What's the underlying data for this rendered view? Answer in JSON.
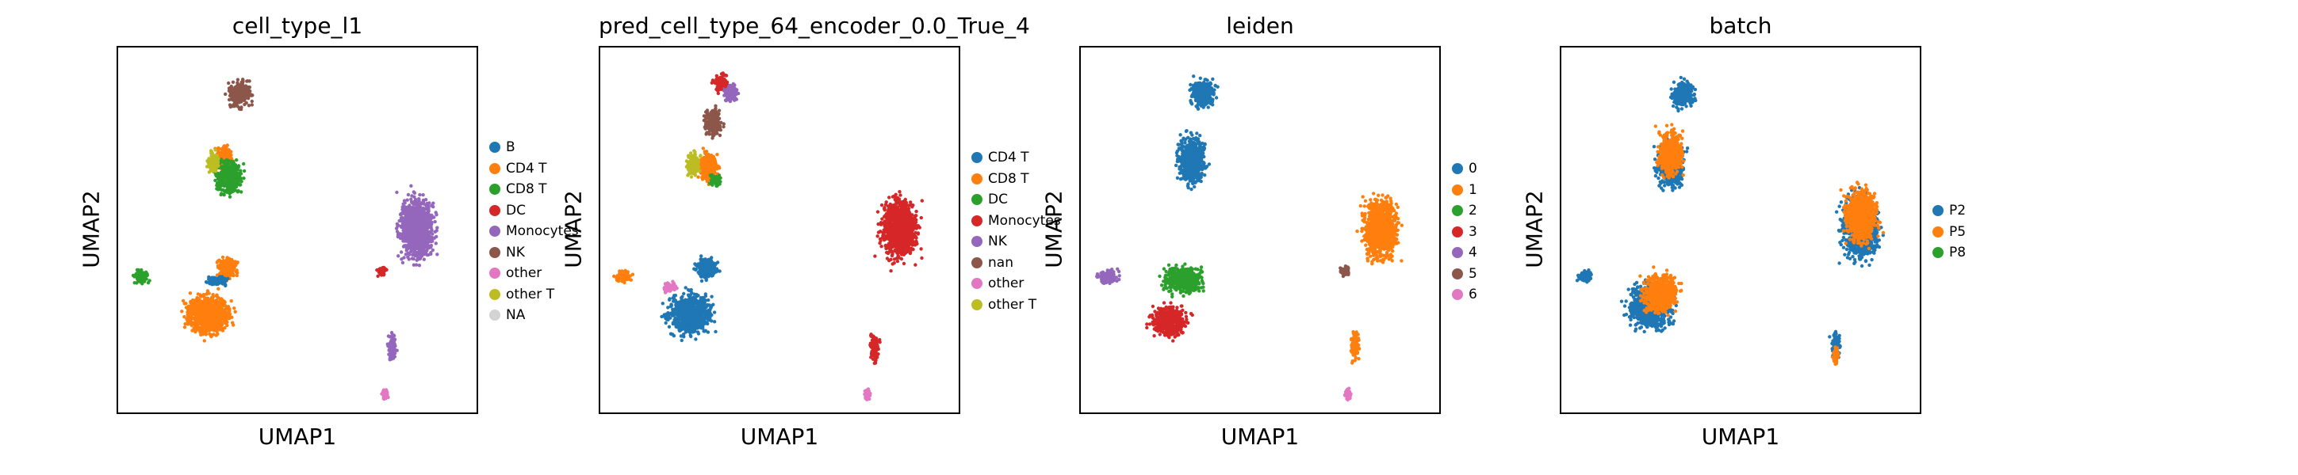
{
  "chart_data": [
    {
      "type": "scatter",
      "title": "cell_type_l1",
      "xlabel": "UMAP1",
      "ylabel": "UMAP2",
      "legend": "right",
      "categories": [
        "B",
        "CD4 T",
        "CD8 T",
        "DC",
        "Monocytes",
        "NK",
        "other",
        "other T",
        "NA"
      ],
      "colors": [
        "#1f77b4",
        "#ff7f0e",
        "#2ca02c",
        "#d62728",
        "#9467bd",
        "#8c564b",
        "#e377c2",
        "#bcbd22",
        "#d3d3d3"
      ],
      "clusters": [
        {
          "name": "CD4 T main",
          "color": 1,
          "x": -5.5,
          "y": -5.5,
          "rx": 1.9,
          "ry": 2.3
        },
        {
          "name": "CD4 T upper",
          "color": 1,
          "x": -4.4,
          "y": -2.2,
          "rx": 0.9,
          "ry": 1.2
        },
        {
          "name": "CD4 T stalk",
          "color": 1,
          "x": -4.6,
          "y": 5.7,
          "rx": 0.8,
          "ry": 1.2
        },
        {
          "name": "B",
          "color": 0,
          "x": -5.0,
          "y": -3.1,
          "rx": 1.0,
          "ry": 0.5
        },
        {
          "name": "CD8 T left",
          "color": 2,
          "x": -9.2,
          "y": -2.8,
          "rx": 0.7,
          "ry": 0.7
        },
        {
          "name": "CD8 T stalk",
          "color": 2,
          "x": -4.3,
          "y": 4.3,
          "rx": 1.2,
          "ry": 2.0
        },
        {
          "name": "other T",
          "color": 7,
          "x": -5.2,
          "y": 5.3,
          "rx": 0.5,
          "ry": 1.2
        },
        {
          "name": "NK",
          "color": 5,
          "x": -3.7,
          "y": 10.2,
          "rx": 1.0,
          "ry": 1.5
        },
        {
          "name": "Monocytes",
          "color": 4,
          "x": 6.2,
          "y": 0.6,
          "rx": 1.6,
          "ry": 3.5
        },
        {
          "name": "Monocytes tail",
          "color": 4,
          "x": 4.8,
          "y": -7.8,
          "rx": 0.4,
          "ry": 1.6
        },
        {
          "name": "DC",
          "color": 3,
          "x": 4.2,
          "y": -2.4,
          "rx": 0.4,
          "ry": 0.5
        },
        {
          "name": "other",
          "color": 6,
          "x": 4.4,
          "y": -11.2,
          "rx": 0.25,
          "ry": 0.6
        }
      ]
    },
    {
      "type": "scatter",
      "title": "pred_cell_type_64_encoder_0.0_True_4",
      "xlabel": "UMAP1",
      "ylabel": "UMAP2",
      "legend": "right",
      "categories": [
        "CD4 T",
        "CD8 T",
        "DC",
        "Monocytes",
        "NK",
        "nan",
        "other",
        "other T"
      ],
      "colors": [
        "#1f77b4",
        "#ff7f0e",
        "#2ca02c",
        "#d62728",
        "#9467bd",
        "#8c564b",
        "#e377c2",
        "#bcbd22"
      ],
      "clusters": [
        {
          "name": "CD4 T main",
          "color": 0,
          "x": -5.5,
          "y": -5.5,
          "rx": 1.9,
          "ry": 2.3
        },
        {
          "name": "CD4 T upper",
          "color": 0,
          "x": -4.6,
          "y": -2.2,
          "rx": 1.0,
          "ry": 1.3
        },
        {
          "name": "CD8 T left",
          "color": 1,
          "x": -9.2,
          "y": -2.8,
          "rx": 0.7,
          "ry": 0.7
        },
        {
          "name": "CD8 T stalk",
          "color": 1,
          "x": -4.5,
          "y": 5.0,
          "rx": 0.9,
          "ry": 1.6
        },
        {
          "name": "other",
          "color": 6,
          "x": -6.6,
          "y": -3.6,
          "rx": 0.6,
          "ry": 0.6
        },
        {
          "name": "other T",
          "color": 7,
          "x": -5.3,
          "y": 5.2,
          "rx": 0.6,
          "ry": 1.3
        },
        {
          "name": "nan",
          "color": 5,
          "x": -4.2,
          "y": 8.2,
          "rx": 0.8,
          "ry": 1.6
        },
        {
          "name": "DC",
          "color": 2,
          "x": -4.1,
          "y": 4.0,
          "rx": 0.6,
          "ry": 0.7
        },
        {
          "name": "NK",
          "color": 4,
          "x": -3.2,
          "y": 10.3,
          "rx": 0.7,
          "ry": 1.0
        },
        {
          "name": "Monocytes top",
          "color": 3,
          "x": -3.8,
          "y": 11.0,
          "rx": 0.6,
          "ry": 1.0
        },
        {
          "name": "Monocytes",
          "color": 3,
          "x": 6.2,
          "y": 0.6,
          "rx": 1.6,
          "ry": 3.5
        },
        {
          "name": "Monocytes tail",
          "color": 3,
          "x": 4.8,
          "y": -7.8,
          "rx": 0.4,
          "ry": 1.6
        },
        {
          "name": "other tail",
          "color": 6,
          "x": 4.4,
          "y": -11.2,
          "rx": 0.25,
          "ry": 0.6
        }
      ]
    },
    {
      "type": "scatter",
      "title": "leiden",
      "xlabel": "UMAP1",
      "ylabel": "UMAP2",
      "legend": "right",
      "categories": [
        "0",
        "1",
        "2",
        "3",
        "4",
        "5",
        "6"
      ],
      "colors": [
        "#1f77b4",
        "#ff7f0e",
        "#2ca02c",
        "#d62728",
        "#9467bd",
        "#8c564b",
        "#e377c2"
      ],
      "clusters": [
        {
          "name": "0 stalk",
          "color": 0,
          "x": -4.3,
          "y": 5.5,
          "rx": 1.2,
          "ry": 2.8
        },
        {
          "name": "0 top",
          "color": 0,
          "x": -3.7,
          "y": 10.2,
          "rx": 1.1,
          "ry": 1.6
        },
        {
          "name": "2 mid",
          "color": 2,
          "x": -4.8,
          "y": -3.0,
          "rx": 1.8,
          "ry": 1.5
        },
        {
          "name": "3",
          "color": 3,
          "x": -5.6,
          "y": -6.0,
          "rx": 1.6,
          "ry": 1.7
        },
        {
          "name": "4",
          "color": 4,
          "x": -9.0,
          "y": -2.8,
          "rx": 0.9,
          "ry": 0.8
        },
        {
          "name": "1",
          "color": 1,
          "x": 6.2,
          "y": 0.6,
          "rx": 1.6,
          "ry": 3.5
        },
        {
          "name": "1 tail",
          "color": 1,
          "x": 4.8,
          "y": -7.8,
          "rx": 0.4,
          "ry": 1.6
        },
        {
          "name": "5",
          "color": 5,
          "x": 4.2,
          "y": -2.4,
          "rx": 0.4,
          "ry": 0.5
        },
        {
          "name": "6",
          "color": 6,
          "x": 4.4,
          "y": -11.2,
          "rx": 0.25,
          "ry": 0.6
        }
      ]
    },
    {
      "type": "scatter",
      "title": "batch",
      "xlabel": "UMAP1",
      "ylabel": "UMAP2",
      "legend": "right",
      "categories": [
        "P2",
        "P5",
        "P8"
      ],
      "colors": [
        "#1f77b4",
        "#ff7f0e",
        "#2ca02c"
      ],
      "clusters": [
        {
          "name": "main",
          "color": 0,
          "x": -5.5,
          "y": -5.0,
          "rx": 1.9,
          "ry": 2.5
        },
        {
          "name": "left",
          "color": 0,
          "x": -9.2,
          "y": -2.8,
          "rx": 0.7,
          "ry": 0.7
        },
        {
          "name": "stalk",
          "color": 0,
          "x": -4.4,
          "y": 5.0,
          "rx": 1.2,
          "ry": 2.5
        },
        {
          "name": "top",
          "color": 0,
          "x": -3.7,
          "y": 10.2,
          "rx": 1.0,
          "ry": 1.5
        },
        {
          "name": "mono",
          "color": 0,
          "x": 6.2,
          "y": 0.6,
          "rx": 1.6,
          "ry": 3.5
        },
        {
          "name": "mono tail",
          "color": 0,
          "x": 4.8,
          "y": -7.8,
          "rx": 0.4,
          "ry": 1.6
        },
        {
          "name": "P5 stalk",
          "color": 1,
          "x": -4.4,
          "y": 6.0,
          "rx": 1.1,
          "ry": 2.5
        },
        {
          "name": "P5 mono",
          "color": 1,
          "x": 6.2,
          "y": 1.5,
          "rx": 1.5,
          "ry": 3.0
        },
        {
          "name": "P5 main",
          "color": 1,
          "x": -5.0,
          "y": -4.0,
          "rx": 1.5,
          "ry": 2.2
        },
        {
          "name": "P5 tail",
          "color": 1,
          "x": 4.8,
          "y": -8.5,
          "rx": 0.3,
          "ry": 1.0
        }
      ]
    }
  ]
}
